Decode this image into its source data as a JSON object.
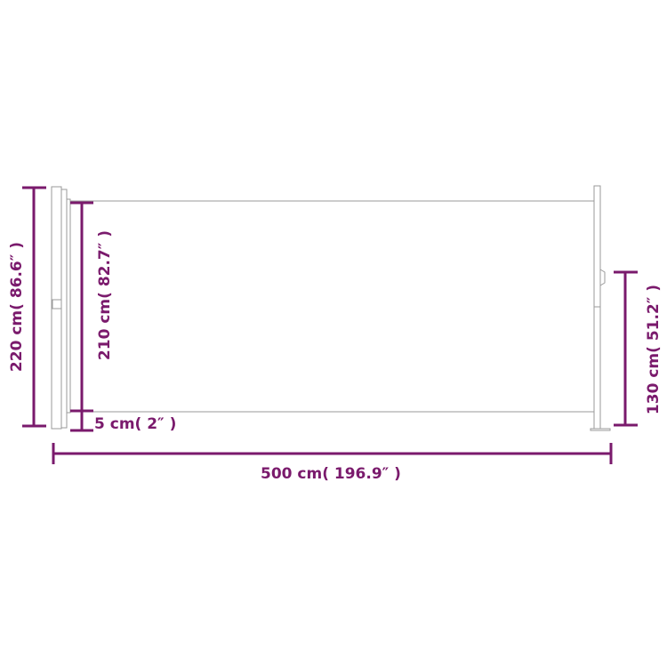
{
  "colors": {
    "dimension": "#7a1a6c",
    "outline": "#9a9a9a"
  },
  "dimensions": {
    "total_height": "220 cm( 86.6″ )",
    "screen_height": "210 cm( 82.7″ )",
    "bottom_gap": "5 cm( 2″ )",
    "post_height": "130 cm( 51.2″ )",
    "width": "500 cm( 196.9″ )"
  }
}
